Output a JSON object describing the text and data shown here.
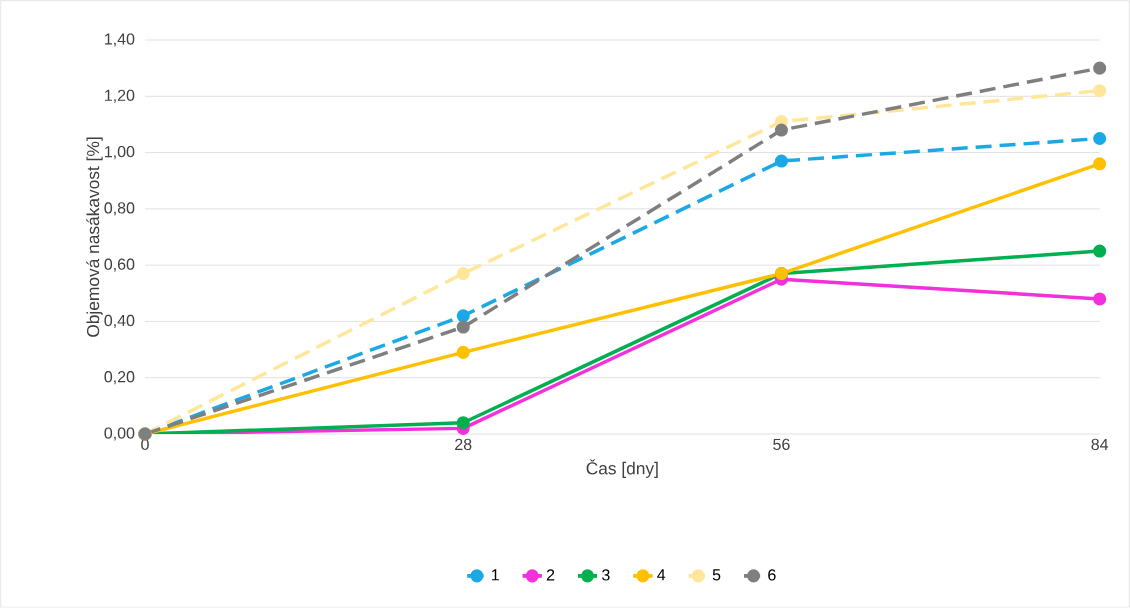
{
  "chart_data": {
    "type": "line",
    "xlabel": "Čas [dny]",
    "ylabel": "Objemová nasákavost [%]",
    "x": [
      0,
      28,
      56,
      84
    ],
    "xlim": [
      0,
      84
    ],
    "xticks": [
      0,
      28,
      56,
      84
    ],
    "ylim": [
      0,
      1.4
    ],
    "yticks": [
      {
        "value": 0,
        "label": "0,00"
      },
      {
        "value": 0.2,
        "label": "0,20"
      },
      {
        "value": 0.4,
        "label": "0,40"
      },
      {
        "value": 0.6,
        "label": "0,60"
      },
      {
        "value": 0.8,
        "label": "0,80"
      },
      {
        "value": 1.0,
        "label": "1,00"
      },
      {
        "value": 1.2,
        "label": "1,20"
      },
      {
        "value": 1.4,
        "label": "1,40"
      }
    ],
    "grid": "y",
    "legend": "bottom",
    "marker": "circle",
    "series": [
      {
        "name": "1",
        "color": "#1ba9e6",
        "line_style": "dashed",
        "values": [
          0,
          0.42,
          0.97,
          1.05
        ]
      },
      {
        "name": "2",
        "color": "#f230dc",
        "line_style": "solid",
        "values": [
          0,
          0.02,
          0.55,
          0.48
        ]
      },
      {
        "name": "3",
        "color": "#00b050",
        "line_style": "solid",
        "values": [
          0,
          0.04,
          0.57,
          0.65
        ]
      },
      {
        "name": "4",
        "color": "#ffc000",
        "line_style": "solid",
        "values": [
          0,
          0.29,
          0.57,
          0.96
        ]
      },
      {
        "name": "5",
        "color": "#ffe699",
        "line_style": "dashed",
        "values": [
          0,
          0.57,
          1.11,
          1.22
        ]
      },
      {
        "name": "6",
        "color": "#7f7f7f",
        "line_style": "dashed",
        "values": [
          0,
          0.38,
          1.08,
          1.3
        ]
      }
    ]
  }
}
